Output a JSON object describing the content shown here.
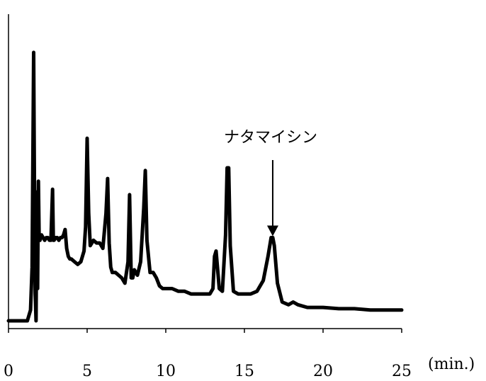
{
  "chart_data": {
    "type": "line",
    "title": "",
    "xlabel": "(min.)",
    "ylabel": "",
    "xlim": [
      0,
      25
    ],
    "ylim": [
      0,
      100
    ],
    "grid": false,
    "x_ticks": [
      0,
      5,
      10,
      15,
      20,
      25
    ],
    "x_tick_labels": [
      "0",
      "5",
      "10",
      "15",
      "20",
      "25"
    ],
    "annotation": {
      "text": "ナタマイシン",
      "target_x": 16.8,
      "target_y": 31
    },
    "series": [
      {
        "x": [
          0,
          1.2,
          1.4,
          1.5,
          1.55,
          1.6,
          1.65,
          1.7,
          1.75,
          1.8,
          1.85,
          1.9,
          1.95,
          2.0,
          2.1,
          2.2,
          2.3,
          2.4,
          2.5,
          2.6,
          2.7,
          2.8,
          2.85,
          2.9,
          3.0,
          3.1,
          3.2,
          3.3,
          3.4,
          3.5,
          3.6,
          3.7,
          3.8,
          3.9,
          4.0,
          4.2,
          4.4,
          4.6,
          4.8,
          4.9,
          5.0,
          5.1,
          5.2,
          5.4,
          5.6,
          5.8,
          6.0,
          6.2,
          6.3,
          6.4,
          6.5,
          6.6,
          6.8,
          7.0,
          7.2,
          7.4,
          7.6,
          7.7,
          7.8,
          7.9,
          8.0,
          8.2,
          8.4,
          8.6,
          8.7,
          8.8,
          9.0,
          9.2,
          9.4,
          9.6,
          9.8,
          10.0,
          10.4,
          10.8,
          11.2,
          11.6,
          12.0,
          12.4,
          12.8,
          13.0,
          13.1,
          13.2,
          13.4,
          13.6,
          13.8,
          13.9,
          14.0,
          14.1,
          14.3,
          14.6,
          15.0,
          15.4,
          15.8,
          16.2,
          16.5,
          16.7,
          16.8,
          16.9,
          17.1,
          17.4,
          17.8,
          18.1,
          18.4,
          19.0,
          20.0,
          21.0,
          22.0,
          23.0,
          24.0,
          25.0
        ],
        "y": [
          0,
          0,
          4,
          20,
          60,
          100,
          50,
          10,
          0,
          48,
          12,
          52,
          30,
          30,
          32,
          31,
          30,
          31,
          31,
          30,
          30,
          49,
          30,
          30,
          31,
          31,
          30,
          31,
          31,
          32,
          34,
          27,
          24,
          23,
          23,
          22,
          21,
          22,
          26,
          35,
          68,
          40,
          28,
          30,
          29,
          29,
          27,
          40,
          53,
          29,
          20,
          18,
          18,
          17,
          16,
          14,
          22,
          47,
          16,
          16,
          19,
          17,
          22,
          42,
          56,
          30,
          18,
          18,
          16,
          13,
          12,
          12,
          12,
          11,
          11,
          10,
          10,
          10,
          10,
          12,
          24,
          26,
          12,
          11,
          32,
          57,
          57,
          28,
          11,
          10,
          10,
          10,
          11,
          15,
          24,
          31,
          31,
          28,
          14,
          7,
          6,
          7,
          6,
          5,
          5,
          4.5,
          4.5,
          4,
          4,
          4
        ]
      }
    ]
  }
}
